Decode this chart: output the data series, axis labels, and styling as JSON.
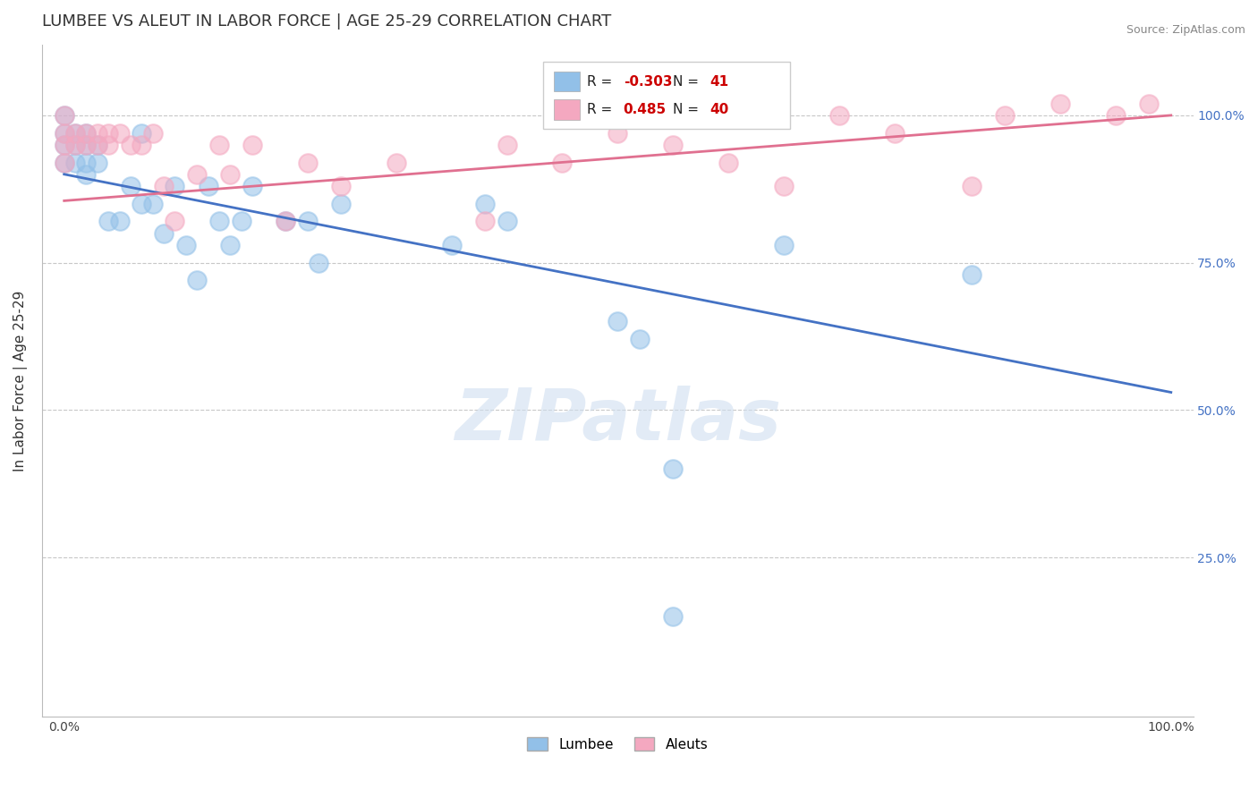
{
  "title": "LUMBEE VS ALEUT IN LABOR FORCE | AGE 25-29 CORRELATION CHART",
  "source": "Source: ZipAtlas.com",
  "ylabel": "In Labor Force | Age 25-29",
  "xlim": [
    -0.02,
    1.02
  ],
  "ylim": [
    -0.02,
    1.12
  ],
  "lumbee_R": -0.303,
  "lumbee_N": 41,
  "aleut_R": 0.485,
  "aleut_N": 40,
  "lumbee_color": "#92c0e8",
  "aleut_color": "#f4a8c0",
  "lumbee_line_color": "#4472c4",
  "aleut_line_color": "#e07090",
  "watermark_text": "ZIPatlas",
  "lumbee_x": [
    0.0,
    0.0,
    0.0,
    0.0,
    0.01,
    0.01,
    0.01,
    0.02,
    0.02,
    0.02,
    0.02,
    0.03,
    0.03,
    0.04,
    0.05,
    0.06,
    0.07,
    0.07,
    0.08,
    0.09,
    0.1,
    0.11,
    0.12,
    0.13,
    0.14,
    0.15,
    0.16,
    0.17,
    0.2,
    0.22,
    0.23,
    0.25,
    0.35,
    0.38,
    0.4,
    0.5,
    0.52,
    0.55,
    0.65,
    0.82,
    0.55
  ],
  "lumbee_y": [
    1.0,
    0.97,
    0.95,
    0.92,
    0.97,
    0.95,
    0.92,
    0.97,
    0.95,
    0.92,
    0.9,
    0.95,
    0.92,
    0.82,
    0.82,
    0.88,
    0.97,
    0.85,
    0.85,
    0.8,
    0.88,
    0.78,
    0.72,
    0.88,
    0.82,
    0.78,
    0.82,
    0.88,
    0.82,
    0.82,
    0.75,
    0.85,
    0.78,
    0.85,
    0.82,
    0.65,
    0.62,
    0.15,
    0.78,
    0.73,
    0.4
  ],
  "aleut_x": [
    0.0,
    0.0,
    0.0,
    0.0,
    0.01,
    0.01,
    0.02,
    0.02,
    0.03,
    0.03,
    0.04,
    0.04,
    0.05,
    0.06,
    0.07,
    0.08,
    0.09,
    0.1,
    0.12,
    0.14,
    0.15,
    0.17,
    0.2,
    0.22,
    0.25,
    0.3,
    0.38,
    0.4,
    0.45,
    0.5,
    0.55,
    0.6,
    0.65,
    0.7,
    0.75,
    0.82,
    0.85,
    0.9,
    0.95,
    0.98
  ],
  "aleut_y": [
    1.0,
    0.97,
    0.95,
    0.92,
    0.97,
    0.95,
    0.97,
    0.95,
    0.97,
    0.95,
    0.97,
    0.95,
    0.97,
    0.95,
    0.95,
    0.97,
    0.88,
    0.82,
    0.9,
    0.95,
    0.9,
    0.95,
    0.82,
    0.92,
    0.88,
    0.92,
    0.82,
    0.95,
    0.92,
    0.97,
    0.95,
    0.92,
    0.88,
    1.0,
    0.97,
    0.88,
    1.0,
    1.02,
    1.0,
    1.02
  ],
  "lumbee_trend_start": 0.9,
  "lumbee_trend_end": 0.53,
  "aleut_trend_start": 0.855,
  "aleut_trend_end": 1.0,
  "background_color": "#ffffff",
  "grid_color": "#c8c8c8",
  "title_fontsize": 13,
  "axis_label_fontsize": 11,
  "tick_fontsize": 10,
  "legend_fontsize": 11
}
